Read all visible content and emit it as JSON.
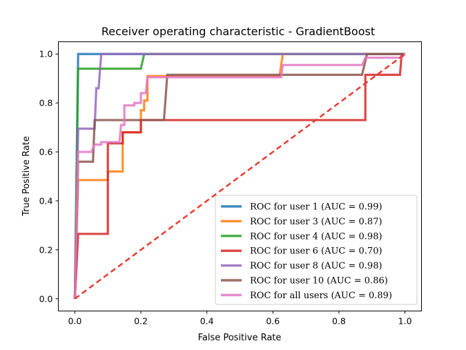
{
  "chart_data": {
    "type": "line",
    "title": "Receiver operating characteristic - GradientBoost",
    "xlabel": "False Positive Rate",
    "ylabel": "True Positive Rate",
    "xlim": [
      -0.05,
      1.05
    ],
    "ylim": [
      -0.05,
      1.05
    ],
    "xticks": [
      "0.0",
      "0.2",
      "0.4",
      "0.6",
      "0.8",
      "1.0"
    ],
    "yticks": [
      "0.0",
      "0.2",
      "0.4",
      "0.6",
      "0.8",
      "1.0"
    ],
    "grid": false,
    "legend_position": "lower-right",
    "series": [
      {
        "name": "ROC for user 1 (AUC = 0.99)",
        "color": "#1f77b4",
        "points": [
          [
            0,
            0
          ],
          [
            0.01,
            1.0
          ],
          [
            1.0,
            1.0
          ]
        ]
      },
      {
        "name": "ROC for user 3 (AUC = 0.87)",
        "color": "#ff7f0e",
        "points": [
          [
            0,
            0
          ],
          [
            0.01,
            0.485
          ],
          [
            0.1,
            0.485
          ],
          [
            0.1,
            0.52
          ],
          [
            0.145,
            0.52
          ],
          [
            0.145,
            0.68
          ],
          [
            0.2,
            0.68
          ],
          [
            0.2,
            0.77
          ],
          [
            0.21,
            0.77
          ],
          [
            0.21,
            0.81
          ],
          [
            0.22,
            0.81
          ],
          [
            0.22,
            0.91
          ],
          [
            0.62,
            0.91
          ],
          [
            0.63,
            1.0
          ],
          [
            1.0,
            1.0
          ]
        ]
      },
      {
        "name": "ROC for user 4 (AUC = 0.98)",
        "color": "#2ca02c",
        "points": [
          [
            0,
            0
          ],
          [
            0.01,
            0.94
          ],
          [
            0.2,
            0.94
          ],
          [
            0.21,
            1.0
          ],
          [
            1.0,
            1.0
          ]
        ]
      },
      {
        "name": "ROC for user 6 (AUC = 0.70)",
        "color": "#d62728",
        "points": [
          [
            0,
            0
          ],
          [
            0.01,
            0.265
          ],
          [
            0.1,
            0.265
          ],
          [
            0.1,
            0.635
          ],
          [
            0.145,
            0.635
          ],
          [
            0.145,
            0.68
          ],
          [
            0.2,
            0.68
          ],
          [
            0.2,
            0.73
          ],
          [
            0.88,
            0.73
          ],
          [
            0.88,
            0.915
          ],
          [
            0.985,
            0.915
          ],
          [
            0.99,
            1.0
          ],
          [
            1.0,
            1.0
          ]
        ]
      },
      {
        "name": "ROC for user 8 (AUC = 0.98)",
        "color": "#9467bd",
        "points": [
          [
            0,
            0
          ],
          [
            0.01,
            0.695
          ],
          [
            0.06,
            0.695
          ],
          [
            0.065,
            0.86
          ],
          [
            0.072,
            0.86
          ],
          [
            0.08,
            1.0
          ],
          [
            1.0,
            1.0
          ]
        ]
      },
      {
        "name": "ROC for user 10 (AUC = 0.86)",
        "color": "#8c564b",
        "points": [
          [
            0,
            0
          ],
          [
            0.01,
            0.56
          ],
          [
            0.055,
            0.56
          ],
          [
            0.06,
            0.73
          ],
          [
            0.27,
            0.73
          ],
          [
            0.28,
            0.915
          ],
          [
            0.87,
            0.915
          ],
          [
            0.885,
            1.0
          ],
          [
            1.0,
            1.0
          ]
        ]
      },
      {
        "name": "ROC for all users (AUC = 0.89)",
        "color": "#e377c2",
        "points": [
          [
            0,
            0
          ],
          [
            0.01,
            0.6
          ],
          [
            0.05,
            0.6
          ],
          [
            0.06,
            0.63
          ],
          [
            0.08,
            0.63
          ],
          [
            0.08,
            0.64
          ],
          [
            0.135,
            0.64
          ],
          [
            0.14,
            0.71
          ],
          [
            0.15,
            0.71
          ],
          [
            0.15,
            0.79
          ],
          [
            0.18,
            0.79
          ],
          [
            0.18,
            0.8
          ],
          [
            0.2,
            0.8
          ],
          [
            0.2,
            0.84
          ],
          [
            0.215,
            0.84
          ],
          [
            0.22,
            0.905
          ],
          [
            0.625,
            0.905
          ],
          [
            0.63,
            0.955
          ],
          [
            0.87,
            0.955
          ],
          [
            0.88,
            0.985
          ],
          [
            0.99,
            0.985
          ],
          [
            1.0,
            1.0
          ]
        ]
      }
    ],
    "diagonal": {
      "color": "#e8392f",
      "points": [
        [
          0,
          0
        ],
        [
          1,
          1
        ]
      ]
    }
  }
}
